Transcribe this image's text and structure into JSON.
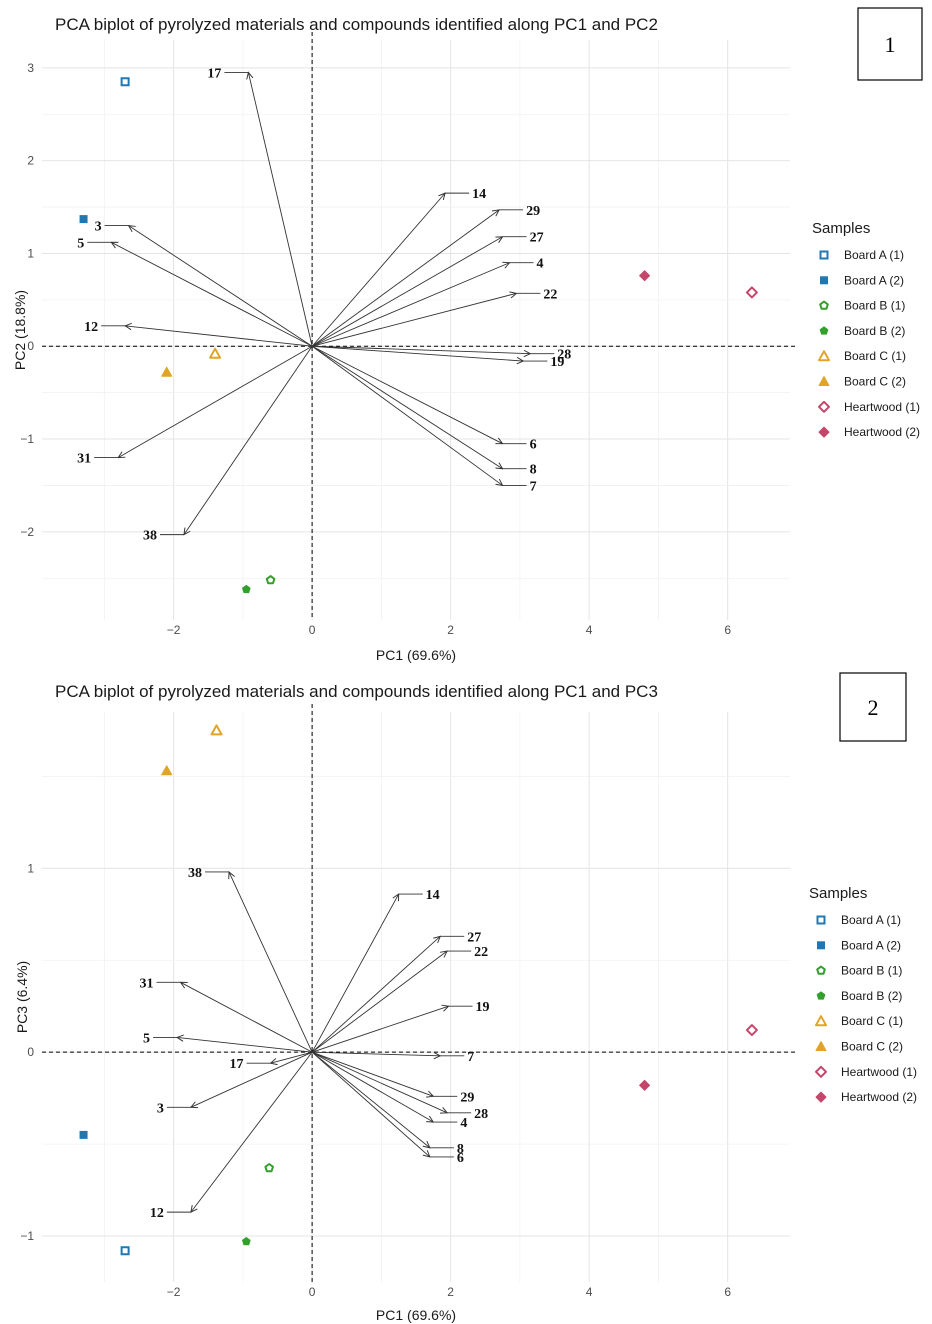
{
  "legend_title": "Samples",
  "samples": [
    {
      "name": "Board A (1)",
      "color": "#1f78b4",
      "shape": "square-open"
    },
    {
      "name": "Board A (2)",
      "color": "#1f78b4",
      "shape": "square"
    },
    {
      "name": "Board B (1)",
      "color": "#33a02c",
      "shape": "pentagon-open"
    },
    {
      "name": "Board B (2)",
      "color": "#33a02c",
      "shape": "pentagon"
    },
    {
      "name": "Board C (1)",
      "color": "#e0a526",
      "shape": "triangle-open"
    },
    {
      "name": "Board C (2)",
      "color": "#e0a526",
      "shape": "triangle"
    },
    {
      "name": "Heartwood (1)",
      "color": "#c5466b",
      "shape": "diamond-open"
    },
    {
      "name": "Heartwood (2)",
      "color": "#c5466b",
      "shape": "diamond"
    }
  ],
  "chart_data": [
    {
      "type": "scatter",
      "panel_label": "1",
      "title": "PCA biplot of pyrolyzed materials and compounds identified along PC1 and PC2",
      "xlabel": "PC1 (69.6%)",
      "ylabel": "PC2 (18.8%)",
      "xlim": [
        -3.9,
        6.9
      ],
      "ylim": [
        -2.95,
        3.3
      ],
      "xticks": [
        -2,
        0,
        2,
        4,
        6
      ],
      "yticks": [
        -2,
        -1,
        0,
        1,
        2,
        3
      ],
      "grid": true,
      "legend": "right",
      "points": [
        {
          "sample": "Board A (1)",
          "x": -2.7,
          "y": 2.85
        },
        {
          "sample": "Board A (2)",
          "x": -3.3,
          "y": 1.37
        },
        {
          "sample": "Board B (1)",
          "x": -0.6,
          "y": -2.52
        },
        {
          "sample": "Board B (2)",
          "x": -0.95,
          "y": -2.62
        },
        {
          "sample": "Board C (1)",
          "x": -1.4,
          "y": -0.08
        },
        {
          "sample": "Board C (2)",
          "x": -2.1,
          "y": -0.28
        },
        {
          "sample": "Heartwood (1)",
          "x": 6.35,
          "y": 0.58
        },
        {
          "sample": "Heartwood (2)",
          "x": 4.8,
          "y": 0.76
        }
      ],
      "loadings": [
        {
          "label": "17",
          "x": -0.92,
          "y": 2.95
        },
        {
          "label": "3",
          "x": -2.65,
          "y": 1.3
        },
        {
          "label": "5",
          "x": -2.9,
          "y": 1.12
        },
        {
          "label": "12",
          "x": -2.7,
          "y": 0.22
        },
        {
          "label": "31",
          "x": -2.8,
          "y": -1.2
        },
        {
          "label": "38",
          "x": -1.85,
          "y": -2.03
        },
        {
          "label": "14",
          "x": 1.92,
          "y": 1.65
        },
        {
          "label": "29",
          "x": 2.7,
          "y": 1.47
        },
        {
          "label": "27",
          "x": 2.75,
          "y": 1.18
        },
        {
          "label": "4",
          "x": 2.85,
          "y": 0.9
        },
        {
          "label": "22",
          "x": 2.95,
          "y": 0.57
        },
        {
          "label": "28",
          "x": 3.15,
          "y": -0.08
        },
        {
          "label": "19",
          "x": 3.05,
          "y": -0.16
        },
        {
          "label": "6",
          "x": 2.75,
          "y": -1.05
        },
        {
          "label": "8",
          "x": 2.75,
          "y": -1.32
        },
        {
          "label": "7",
          "x": 2.75,
          "y": -1.5
        }
      ]
    },
    {
      "type": "scatter",
      "panel_label": "2",
      "title": "PCA biplot of pyrolyzed materials and compounds identified along PC1 and PC3",
      "xlabel": "PC1 (69.6%)",
      "ylabel": "PC3 (6.4%)",
      "xlim": [
        -3.9,
        6.9
      ],
      "ylim": [
        -1.25,
        1.85
      ],
      "xticks": [
        -2,
        0,
        2,
        4,
        6
      ],
      "yticks": [
        -1,
        0,
        1
      ],
      "grid": true,
      "legend": "right",
      "points": [
        {
          "sample": "Board A (1)",
          "x": -2.7,
          "y": -1.08
        },
        {
          "sample": "Board A (2)",
          "x": -3.3,
          "y": -0.45
        },
        {
          "sample": "Board B (1)",
          "x": -0.62,
          "y": -0.63
        },
        {
          "sample": "Board B (2)",
          "x": -0.95,
          "y": -1.03
        },
        {
          "sample": "Board C (1)",
          "x": -1.38,
          "y": 1.75
        },
        {
          "sample": "Board C (2)",
          "x": -2.1,
          "y": 1.53
        },
        {
          "sample": "Heartwood (1)",
          "x": 6.35,
          "y": 0.12
        },
        {
          "sample": "Heartwood (2)",
          "x": 4.8,
          "y": -0.18
        }
      ],
      "loadings": [
        {
          "label": "38",
          "x": -1.2,
          "y": 0.98
        },
        {
          "label": "31",
          "x": -1.9,
          "y": 0.38
        },
        {
          "label": "5",
          "x": -1.95,
          "y": 0.08
        },
        {
          "label": "17",
          "x": -0.6,
          "y": -0.06
        },
        {
          "label": "3",
          "x": -1.75,
          "y": -0.3
        },
        {
          "label": "12",
          "x": -1.75,
          "y": -0.87
        },
        {
          "label": "14",
          "x": 1.25,
          "y": 0.86
        },
        {
          "label": "27",
          "x": 1.85,
          "y": 0.63
        },
        {
          "label": "22",
          "x": 1.95,
          "y": 0.55
        },
        {
          "label": "19",
          "x": 1.97,
          "y": 0.25
        },
        {
          "label": "7",
          "x": 1.85,
          "y": -0.02
        },
        {
          "label": "29",
          "x": 1.75,
          "y": -0.24
        },
        {
          "label": "28",
          "x": 1.95,
          "y": -0.33
        },
        {
          "label": "4",
          "x": 1.75,
          "y": -0.38
        },
        {
          "label": "8",
          "x": 1.7,
          "y": -0.52
        },
        {
          "label": "6",
          "x": 1.7,
          "y": -0.57
        }
      ]
    }
  ]
}
